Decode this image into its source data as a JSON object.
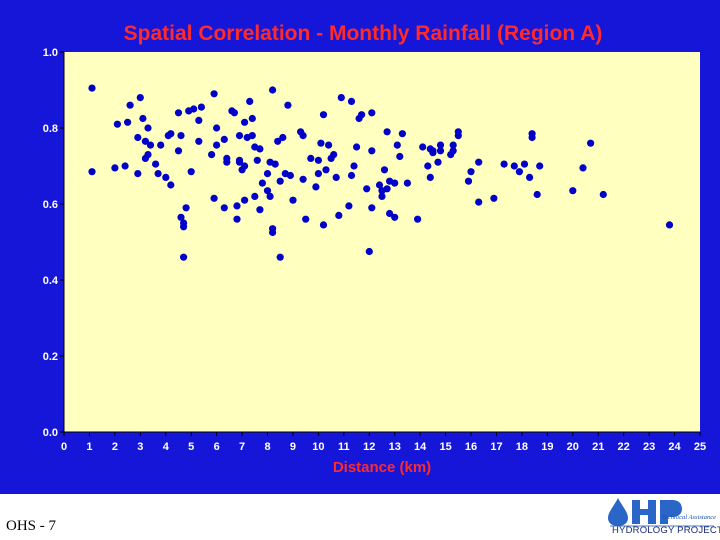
{
  "chart_data": {
    "type": "scatter",
    "title": "Spatial Correlation - Monthly Rainfall (Region A)",
    "xlabel": "Distance (km)",
    "ylabel": "",
    "xlim": [
      0,
      25
    ],
    "ylim": [
      0,
      1
    ],
    "xticks": [
      0,
      1,
      2,
      3,
      4,
      5,
      6,
      7,
      8,
      9,
      10,
      11,
      12,
      13,
      14,
      15,
      16,
      17,
      18,
      19,
      20,
      21,
      22,
      23,
      24,
      25
    ],
    "yticks": [
      "0.0",
      "0.2",
      "0.4",
      "0.6",
      "0.8",
      "1.0"
    ],
    "grid": false,
    "legend": "none",
    "points": [
      [
        1.1,
        0.905
      ],
      [
        1.1,
        0.685
      ],
      [
        2.0,
        0.695
      ],
      [
        2.1,
        0.81
      ],
      [
        2.4,
        0.7
      ],
      [
        2.5,
        0.815
      ],
      [
        2.6,
        0.86
      ],
      [
        2.9,
        0.68
      ],
      [
        2.9,
        0.775
      ],
      [
        3.0,
        0.88
      ],
      [
        3.1,
        0.825
      ],
      [
        3.2,
        0.72
      ],
      [
        3.2,
        0.765
      ],
      [
        3.3,
        0.8
      ],
      [
        3.3,
        0.73
      ],
      [
        3.4,
        0.755
      ],
      [
        3.6,
        0.705
      ],
      [
        3.7,
        0.68
      ],
      [
        3.8,
        0.755
      ],
      [
        4.0,
        0.67
      ],
      [
        4.1,
        0.78
      ],
      [
        4.2,
        0.65
      ],
      [
        4.2,
        0.785
      ],
      [
        4.5,
        0.74
      ],
      [
        4.5,
        0.84
      ],
      [
        4.6,
        0.78
      ],
      [
        4.6,
        0.565
      ],
      [
        4.7,
        0.55
      ],
      [
        4.7,
        0.54
      ],
      [
        4.7,
        0.46
      ],
      [
        4.8,
        0.59
      ],
      [
        4.9,
        0.845
      ],
      [
        5.0,
        0.685
      ],
      [
        5.1,
        0.85
      ],
      [
        5.3,
        0.765
      ],
      [
        5.3,
        0.82
      ],
      [
        5.4,
        0.855
      ],
      [
        5.8,
        0.73
      ],
      [
        5.9,
        0.89
      ],
      [
        5.9,
        0.615
      ],
      [
        6.0,
        0.755
      ],
      [
        6.0,
        0.8
      ],
      [
        6.3,
        0.59
      ],
      [
        6.3,
        0.77
      ],
      [
        6.4,
        0.72
      ],
      [
        6.4,
        0.71
      ],
      [
        6.6,
        0.845
      ],
      [
        6.7,
        0.84
      ],
      [
        6.8,
        0.595
      ],
      [
        6.8,
        0.56
      ],
      [
        6.9,
        0.78
      ],
      [
        6.9,
        0.715
      ],
      [
        6.9,
        0.71
      ],
      [
        7.0,
        0.69
      ],
      [
        7.1,
        0.815
      ],
      [
        7.1,
        0.7
      ],
      [
        7.1,
        0.61
      ],
      [
        7.2,
        0.775
      ],
      [
        7.3,
        0.87
      ],
      [
        7.4,
        0.825
      ],
      [
        7.4,
        0.78
      ],
      [
        7.5,
        0.75
      ],
      [
        7.5,
        0.62
      ],
      [
        7.6,
        0.715
      ],
      [
        7.7,
        0.745
      ],
      [
        7.7,
        0.585
      ],
      [
        7.8,
        0.655
      ],
      [
        8.0,
        0.635
      ],
      [
        8.0,
        0.68
      ],
      [
        8.1,
        0.71
      ],
      [
        8.1,
        0.62
      ],
      [
        8.2,
        0.9
      ],
      [
        8.2,
        0.535
      ],
      [
        8.2,
        0.525
      ],
      [
        8.3,
        0.705
      ],
      [
        8.4,
        0.765
      ],
      [
        8.5,
        0.66
      ],
      [
        8.5,
        0.46
      ],
      [
        8.6,
        0.775
      ],
      [
        8.7,
        0.68
      ],
      [
        8.8,
        0.86
      ],
      [
        8.9,
        0.675
      ],
      [
        9.0,
        0.61
      ],
      [
        9.3,
        0.79
      ],
      [
        9.4,
        0.665
      ],
      [
        9.4,
        0.78
      ],
      [
        9.5,
        0.56
      ],
      [
        9.7,
        0.72
      ],
      [
        9.9,
        0.645
      ],
      [
        10.0,
        0.68
      ],
      [
        10.0,
        0.715
      ],
      [
        10.1,
        0.76
      ],
      [
        10.2,
        0.835
      ],
      [
        10.2,
        0.545
      ],
      [
        10.3,
        0.69
      ],
      [
        10.4,
        0.755
      ],
      [
        10.5,
        0.72
      ],
      [
        10.6,
        0.73
      ],
      [
        10.7,
        0.67
      ],
      [
        10.8,
        0.57
      ],
      [
        10.9,
        0.88
      ],
      [
        11.2,
        0.595
      ],
      [
        11.3,
        0.87
      ],
      [
        11.3,
        0.675
      ],
      [
        11.4,
        0.7
      ],
      [
        11.5,
        0.75
      ],
      [
        11.6,
        0.825
      ],
      [
        11.7,
        0.835
      ],
      [
        11.9,
        0.64
      ],
      [
        12.0,
        0.475
      ],
      [
        12.1,
        0.74
      ],
      [
        12.1,
        0.59
      ],
      [
        12.1,
        0.84
      ],
      [
        12.4,
        0.65
      ],
      [
        12.5,
        0.635
      ],
      [
        12.5,
        0.62
      ],
      [
        12.6,
        0.69
      ],
      [
        12.7,
        0.64
      ],
      [
        12.7,
        0.79
      ],
      [
        12.8,
        0.575
      ],
      [
        12.8,
        0.66
      ],
      [
        13.0,
        0.565
      ],
      [
        13.0,
        0.655
      ],
      [
        13.1,
        0.755
      ],
      [
        13.2,
        0.725
      ],
      [
        13.3,
        0.785
      ],
      [
        13.5,
        0.655
      ],
      [
        13.9,
        0.56
      ],
      [
        14.1,
        0.75
      ],
      [
        14.3,
        0.7
      ],
      [
        14.4,
        0.745
      ],
      [
        14.4,
        0.67
      ],
      [
        14.5,
        0.735
      ],
      [
        14.5,
        0.74
      ],
      [
        14.7,
        0.71
      ],
      [
        14.8,
        0.74
      ],
      [
        14.8,
        0.755
      ],
      [
        15.2,
        0.73
      ],
      [
        15.3,
        0.755
      ],
      [
        15.3,
        0.74
      ],
      [
        15.5,
        0.79
      ],
      [
        15.5,
        0.78
      ],
      [
        15.9,
        0.66
      ],
      [
        16.0,
        0.685
      ],
      [
        16.3,
        0.71
      ],
      [
        16.3,
        0.605
      ],
      [
        16.9,
        0.615
      ],
      [
        17.3,
        0.705
      ],
      [
        17.7,
        0.7
      ],
      [
        17.9,
        0.685
      ],
      [
        18.1,
        0.705
      ],
      [
        18.3,
        0.67
      ],
      [
        18.4,
        0.775
      ],
      [
        18.4,
        0.785
      ],
      [
        18.6,
        0.625
      ],
      [
        18.7,
        0.7
      ],
      [
        20.0,
        0.635
      ],
      [
        20.4,
        0.695
      ],
      [
        20.7,
        0.76
      ],
      [
        21.2,
        0.625
      ],
      [
        23.8,
        0.545
      ]
    ]
  },
  "slide": {
    "label": "OHS - 7",
    "logo_tagline": "Technical Assistance",
    "logo_name": "HYDROLOGY PROJECT"
  },
  "colors": {
    "slide_background": "#1616d8",
    "plot_area": "#ffffc0",
    "title_text": "#ff2a2a",
    "axis_label": "#ff2a2a",
    "tick_text": "#ffffff",
    "marker": "#0000c8"
  }
}
